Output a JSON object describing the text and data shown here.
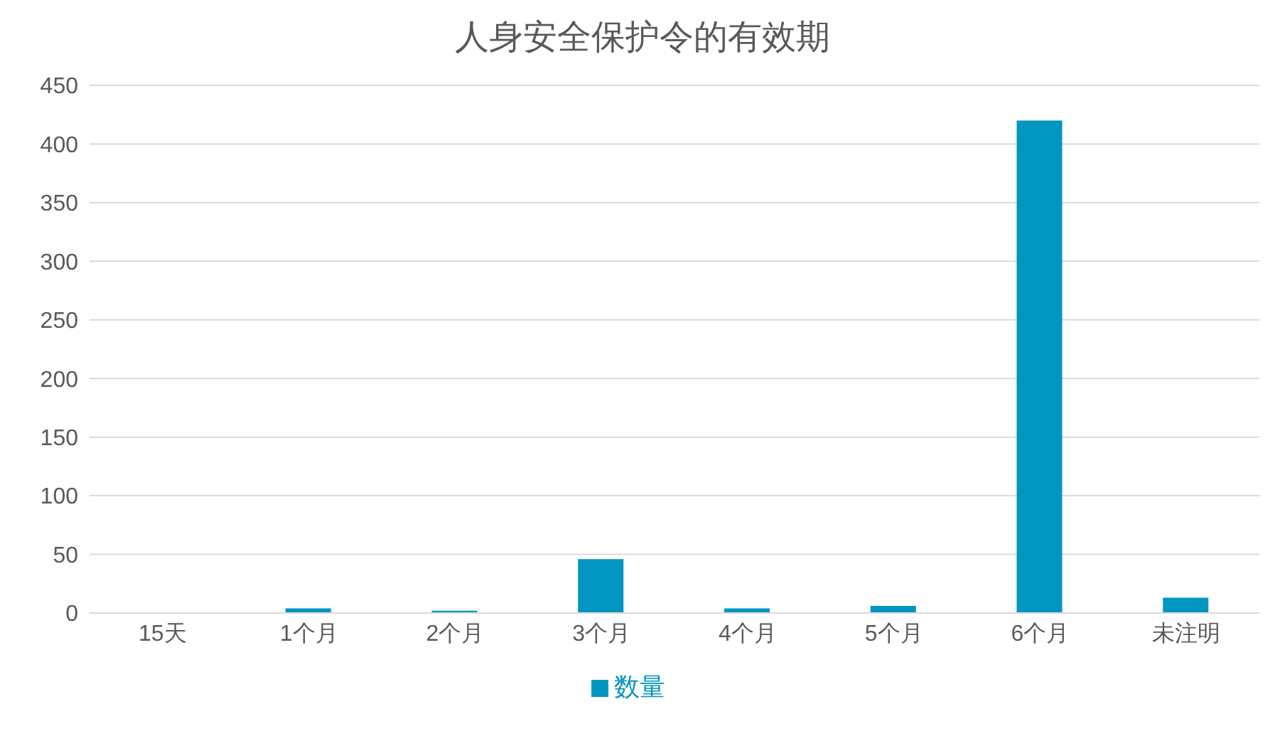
{
  "chart_data": {
    "type": "bar",
    "title": "人身安全保护令的有效期",
    "categories": [
      "15天",
      "1个月",
      "2个月",
      "3个月",
      "4个月",
      "5个月",
      "6个月",
      "未注明"
    ],
    "series": [
      {
        "name": "数量",
        "color": "#0096c0",
        "values": [
          0,
          4,
          2,
          46,
          4,
          6,
          420,
          13
        ]
      }
    ],
    "ylim": [
      0,
      450
    ],
    "yticks": [
      0,
      50,
      100,
      150,
      200,
      250,
      300,
      350,
      400,
      450
    ],
    "grid": "y",
    "legend": "bottom"
  }
}
